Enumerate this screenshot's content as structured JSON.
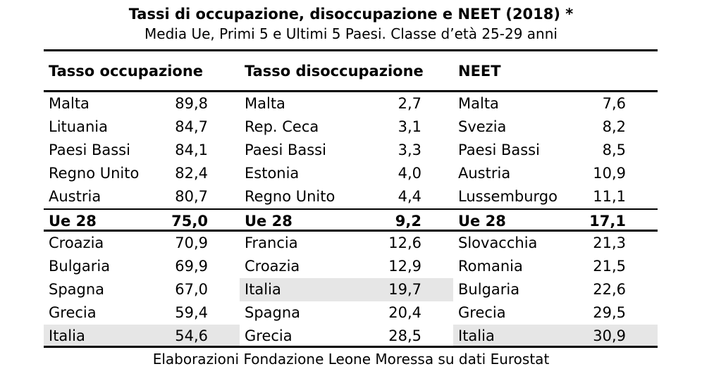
{
  "page": {
    "title": "Tassi di occupazione, disoccupazione e NEET (2018) *",
    "subtitle": "Media Ue, Primi 5 e Ultimi 5 Paesi. Classe d’età 25-29 anni",
    "footer": "Elaborazioni Fondazione Leone Moressa su dati Eurostat"
  },
  "colors": {
    "highlight": "#e6e6e6",
    "text": "#000000",
    "rule": "#000000",
    "background": "#ffffff"
  },
  "table": {
    "columns": [
      {
        "header": "Tasso occupazione",
        "rows": [
          {
            "name": "Malta",
            "value": "89,8"
          },
          {
            "name": "Lituania",
            "value": "84,7"
          },
          {
            "name": "Paesi Bassi",
            "value": "84,1"
          },
          {
            "name": "Regno Unito",
            "value": "82,4"
          },
          {
            "name": "Austria",
            "value": "80,7"
          },
          {
            "name": "Ue 28",
            "value": "75,0"
          },
          {
            "name": "Croazia",
            "value": "70,9"
          },
          {
            "name": "Bulgaria",
            "value": "69,9"
          },
          {
            "name": "Spagna",
            "value": "67,0"
          },
          {
            "name": "Grecia",
            "value": "59,4"
          },
          {
            "name": "Italia",
            "value": "54,6"
          }
        ]
      },
      {
        "header": "Tasso disoccupazione",
        "rows": [
          {
            "name": "Malta",
            "value": "2,7"
          },
          {
            "name": "Rep. Ceca",
            "value": "3,1"
          },
          {
            "name": "Paesi Bassi",
            "value": "3,3"
          },
          {
            "name": "Estonia",
            "value": "4,0"
          },
          {
            "name": "Regno Unito",
            "value": "4,4"
          },
          {
            "name": "Ue 28",
            "value": "9,2"
          },
          {
            "name": "Francia",
            "value": "12,6"
          },
          {
            "name": "Croazia",
            "value": "12,9"
          },
          {
            "name": "Italia",
            "value": "19,7"
          },
          {
            "name": "Spagna",
            "value": "20,4"
          },
          {
            "name": "Grecia",
            "value": "28,5"
          }
        ]
      },
      {
        "header": "NEET",
        "rows": [
          {
            "name": "Malta",
            "value": "7,6"
          },
          {
            "name": "Svezia",
            "value": "8,2"
          },
          {
            "name": "Paesi Bassi",
            "value": "8,5"
          },
          {
            "name": "Austria",
            "value": "10,9"
          },
          {
            "name": "Lussemburgo",
            "value": "11,1"
          },
          {
            "name": "Ue 28",
            "value": "17,1"
          },
          {
            "name": "Slovacchia",
            "value": "21,3"
          },
          {
            "name": "Romania",
            "value": "21,5"
          },
          {
            "name": "Bulgaria",
            "value": "22,6"
          },
          {
            "name": "Grecia",
            "value": "29,5"
          },
          {
            "name": "Italia",
            "value": "30,9"
          }
        ]
      }
    ]
  },
  "chart_data": {
    "type": "table",
    "title": "Tassi di occupazione, disoccupazione e NEET (2018) *",
    "subtitle": "Media Ue, Primi 5 e Ultimi 5 Paesi. Classe d’età 25-29 anni",
    "source": "Elaborazioni Fondazione Leone Moressa su dati Eurostat",
    "sections": [
      {
        "label": "Tasso occupazione",
        "rows": [
          {
            "country": "Malta",
            "value": 89.8
          },
          {
            "country": "Lituania",
            "value": 84.7
          },
          {
            "country": "Paesi Bassi",
            "value": 84.1
          },
          {
            "country": "Regno Unito",
            "value": 82.4
          },
          {
            "country": "Austria",
            "value": 80.7
          },
          {
            "country": "Ue 28",
            "value": 75.0
          },
          {
            "country": "Croazia",
            "value": 70.9
          },
          {
            "country": "Bulgaria",
            "value": 69.9
          },
          {
            "country": "Spagna",
            "value": 67.0
          },
          {
            "country": "Grecia",
            "value": 59.4
          },
          {
            "country": "Italia",
            "value": 54.6
          }
        ],
        "bold_row": "Ue 28",
        "highlighted_row": "Italia"
      },
      {
        "label": "Tasso disoccupazione",
        "rows": [
          {
            "country": "Malta",
            "value": 2.7
          },
          {
            "country": "Rep. Ceca",
            "value": 3.1
          },
          {
            "country": "Paesi Bassi",
            "value": 3.3
          },
          {
            "country": "Estonia",
            "value": 4.0
          },
          {
            "country": "Regno Unito",
            "value": 4.4
          },
          {
            "country": "Ue 28",
            "value": 9.2
          },
          {
            "country": "Francia",
            "value": 12.6
          },
          {
            "country": "Croazia",
            "value": 12.9
          },
          {
            "country": "Italia",
            "value": 19.7
          },
          {
            "country": "Spagna",
            "value": 20.4
          },
          {
            "country": "Grecia",
            "value": 28.5
          }
        ],
        "bold_row": "Ue 28",
        "highlighted_row": "Italia"
      },
      {
        "label": "NEET",
        "rows": [
          {
            "country": "Malta",
            "value": 7.6
          },
          {
            "country": "Svezia",
            "value": 8.2
          },
          {
            "country": "Paesi Bassi",
            "value": 8.5
          },
          {
            "country": "Austria",
            "value": 10.9
          },
          {
            "country": "Lussemburgo",
            "value": 11.1
          },
          {
            "country": "Ue 28",
            "value": 17.1
          },
          {
            "country": "Slovacchia",
            "value": 21.3
          },
          {
            "country": "Romania",
            "value": 21.5
          },
          {
            "country": "Bulgaria",
            "value": 22.6
          },
          {
            "country": "Grecia",
            "value": 29.5
          },
          {
            "country": "Italia",
            "value": 30.9
          }
        ],
        "bold_row": "Ue 28",
        "highlighted_row": "Italia"
      }
    ]
  }
}
